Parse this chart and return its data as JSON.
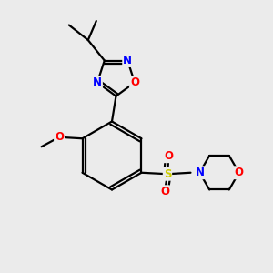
{
  "background_color": "#ebebeb",
  "bond_color": "#000000",
  "bond_width": 1.6,
  "atom_colors": {
    "N": "#0000ff",
    "O": "#ff0000",
    "S": "#cccc00",
    "C": "#000000"
  },
  "font_size": 8.5,
  "fig_width": 3.0,
  "fig_height": 3.0,
  "dpi": 100
}
